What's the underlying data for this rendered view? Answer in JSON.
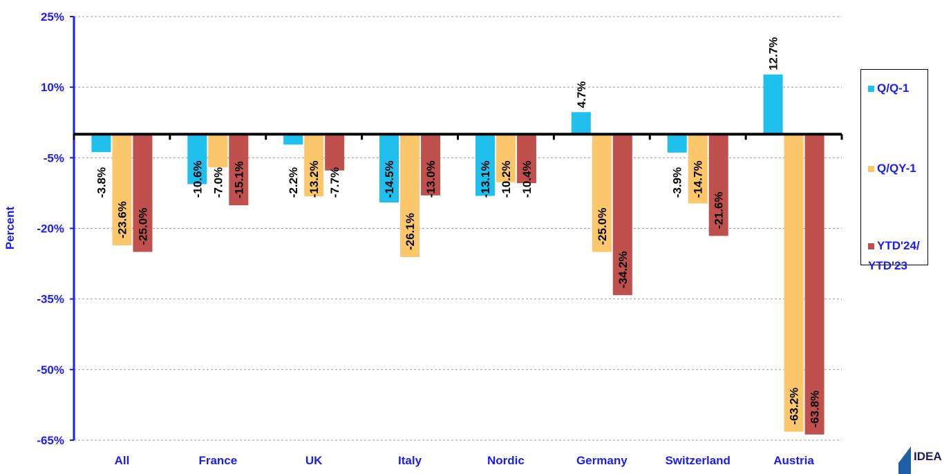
{
  "chart_data": {
    "type": "bar",
    "y_label": "Percent",
    "categories": [
      "All",
      "France",
      "UK",
      "Italy",
      "Nordic",
      "Germany",
      "Switzerland",
      "Austria"
    ],
    "series": [
      {
        "name": "Q/Q-1",
        "color": "#1fbfee",
        "values": [
          -3.8,
          -10.6,
          -2.2,
          -14.5,
          -13.1,
          4.7,
          -3.9,
          12.7
        ],
        "value_labels": [
          "-3.8%",
          "-10.6%",
          "-2.2%",
          "-14.5%",
          "-13.1%",
          "4.7%",
          "-3.9%",
          "12.7%"
        ]
      },
      {
        "name": "Q/QY-1",
        "color": "#fcc66a",
        "values": [
          -23.6,
          -7.0,
          -13.2,
          -26.1,
          -10.2,
          -25.0,
          -14.7,
          -63.2
        ],
        "value_labels": [
          "-23.6%",
          "-7.0%",
          "-13.2%",
          "-26.1%",
          "-10.2%",
          "-25.0%",
          "-14.7%",
          "-63.2%"
        ]
      },
      {
        "name": "YTD'24/ YTD'23",
        "color": "#c0504d",
        "values": [
          -25.0,
          -15.1,
          -7.7,
          -13.0,
          -10.4,
          -34.2,
          -21.6,
          -63.8
        ],
        "value_labels": [
          "-25.0%",
          "-15.1%",
          "-7.7%",
          "-13.0%",
          "-10.4%",
          "-34.2%",
          "-21.6%",
          "-63.8%"
        ]
      }
    ],
    "ylim": [
      -65,
      25
    ],
    "yticks": [
      {
        "value": 25,
        "label": "25%"
      },
      {
        "value": 10,
        "label": "10%"
      },
      {
        "value": -5,
        "label": "-5%"
      },
      {
        "value": -20,
        "label": "-20%"
      },
      {
        "value": -35,
        "label": "-35%"
      },
      {
        "value": -50,
        "label": "-50%"
      },
      {
        "value": -65,
        "label": "-65%"
      }
    ],
    "grid": true,
    "legend": "right",
    "logo_text": "IDEA"
  }
}
